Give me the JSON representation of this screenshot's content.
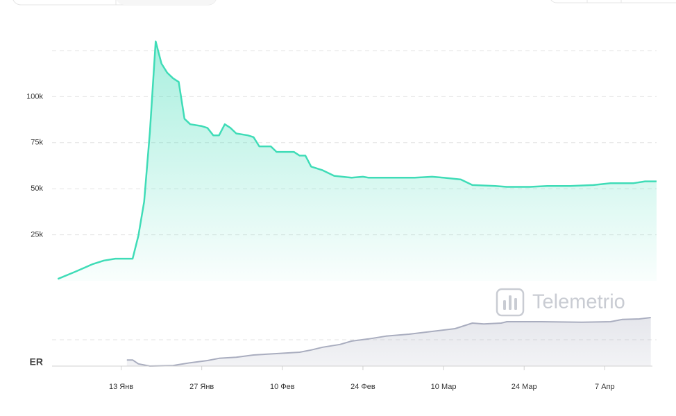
{
  "chart_data": [
    {
      "type": "area",
      "color": "#3fdcb7",
      "x": [
        "01-02",
        "01-05",
        "01-08",
        "01-10",
        "01-12",
        "01-14",
        "01-15",
        "01-16",
        "01-17",
        "01-18",
        "01-19",
        "01-20",
        "01-21",
        "01-22",
        "01-23",
        "01-24",
        "01-25",
        "01-27",
        "01-28",
        "01-29",
        "01-30",
        "01-31",
        "02-01",
        "02-02",
        "02-04",
        "02-05",
        "02-06",
        "02-08",
        "02-09",
        "02-12",
        "02-13",
        "02-14",
        "02-15",
        "02-17",
        "02-19",
        "02-22",
        "02-24",
        "02-25",
        "03-01",
        "03-05",
        "03-08",
        "03-10",
        "03-13",
        "03-15",
        "03-19",
        "03-21",
        "03-25",
        "03-28",
        "04-01",
        "04-05",
        "04-08",
        "04-12",
        "04-14",
        "04-16"
      ],
      "series": [
        {
          "values": [
            1000,
            4900,
            9000,
            11000,
            12000,
            12000,
            12000,
            24500,
            43000,
            81000,
            130000,
            118000,
            113000,
            110000,
            108000,
            88000,
            85000,
            84000,
            83000,
            79000,
            79000,
            85000,
            83000,
            80000,
            79000,
            78000,
            73000,
            73000,
            70000,
            70000,
            68000,
            68000,
            62000,
            60000,
            57000,
            56000,
            56500,
            56000,
            56000,
            56000,
            56500,
            56000,
            55000,
            52000,
            51500,
            51000,
            51000,
            51500,
            51500,
            52000,
            53000,
            53000,
            54000,
            54000
          ]
        }
      ],
      "xlim": [
        "01-01",
        "04-16"
      ],
      "ylim": [
        0,
        125000
      ],
      "yticks": [
        {
          "value": 25000,
          "label": "25k"
        },
        {
          "value": 50000,
          "label": "50k"
        },
        {
          "value": 75000,
          "label": "75k"
        },
        {
          "value": 100000,
          "label": "100k"
        }
      ],
      "grid": true,
      "watermark": "Telemetrio"
    },
    {
      "type": "area",
      "color": "#a9adbf",
      "label": "ER",
      "x": [
        "01-14",
        "01-15",
        "01-16",
        "01-18",
        "01-22",
        "01-25",
        "01-28",
        "01-30",
        "02-02",
        "02-05",
        "02-09",
        "02-13",
        "02-15",
        "02-17",
        "02-20",
        "02-22",
        "02-25",
        "02-28",
        "03-04",
        "03-08",
        "03-12",
        "03-15",
        "03-17",
        "03-20",
        "03-21",
        "03-27",
        "04-03",
        "04-08",
        "04-10",
        "04-13",
        "04-15"
      ],
      "series": [
        {
          "values": [
            2.2,
            2.2,
            0.8,
            0,
            0.2,
            1.2,
            2,
            2.8,
            3.2,
            4,
            4.5,
            5,
            5.8,
            6.8,
            7.8,
            9,
            9.8,
            10.8,
            11.5,
            12.5,
            13.5,
            15.5,
            15.2,
            15.5,
            16,
            16,
            15.8,
            16,
            16.8,
            17,
            17.5
          ]
        }
      ],
      "xlim": [
        "01-01",
        "04-16"
      ],
      "ylim": [
        0,
        20
      ],
      "xticks": [
        {
          "value": "01-13",
          "label": "13 Янв"
        },
        {
          "value": "01-27",
          "label": "27 Янв"
        },
        {
          "value": "02-10",
          "label": "10 Фев"
        },
        {
          "value": "02-24",
          "label": "24 Фев"
        },
        {
          "value": "03-10",
          "label": "10 Мар"
        },
        {
          "value": "03-24",
          "label": "24 Мар"
        },
        {
          "value": "04-07",
          "label": "7 Апр"
        }
      ]
    }
  ]
}
